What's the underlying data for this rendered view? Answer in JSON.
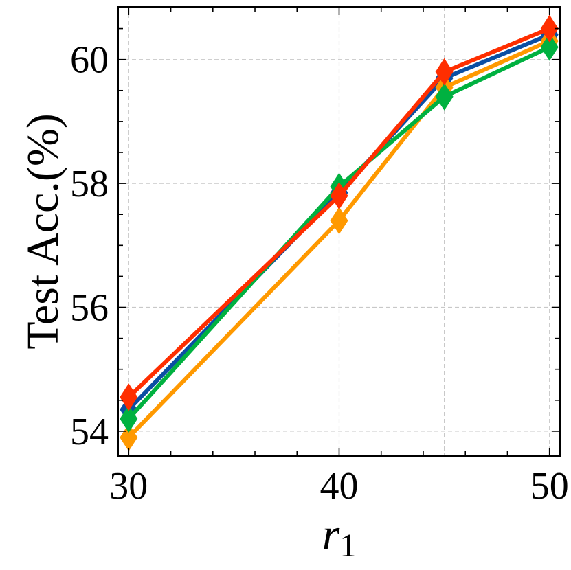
{
  "chart_data": {
    "type": "line",
    "xlabel": "r",
    "xlabel_sub": "1",
    "ylabel": "Test Acc.(%)",
    "xlim": [
      29.5,
      50.5
    ],
    "ylim": [
      53.6,
      60.85
    ],
    "xticks": [
      30,
      40,
      50
    ],
    "xtick_labels": [
      "30",
      "40",
      "50"
    ],
    "x_minor_ticks": [
      32,
      34,
      36,
      38,
      42,
      44,
      46,
      48
    ],
    "yticks": [
      54,
      56,
      58,
      60
    ],
    "ytick_labels": [
      "54",
      "56",
      "58",
      "60"
    ],
    "y_minor_ticks": [
      54.5,
      55,
      55.5,
      56.5,
      57,
      57.5,
      58.5,
      59,
      59.5,
      60.5
    ],
    "x_grid": [
      30,
      40,
      45,
      50
    ],
    "grid": true,
    "legend": "none",
    "marker": "diamond",
    "x": [
      30,
      40,
      45,
      50
    ],
    "series": [
      {
        "color": "#0b4fa3",
        "values": [
          54.35,
          57.85,
          59.7,
          60.4
        ]
      },
      {
        "color": "#ff9900",
        "values": [
          53.9,
          57.4,
          59.55,
          60.3
        ]
      },
      {
        "color": "#00b140",
        "values": [
          54.2,
          57.95,
          59.4,
          60.2
        ]
      },
      {
        "color": "#ff2e00",
        "values": [
          54.55,
          57.8,
          59.8,
          60.5
        ]
      }
    ]
  }
}
